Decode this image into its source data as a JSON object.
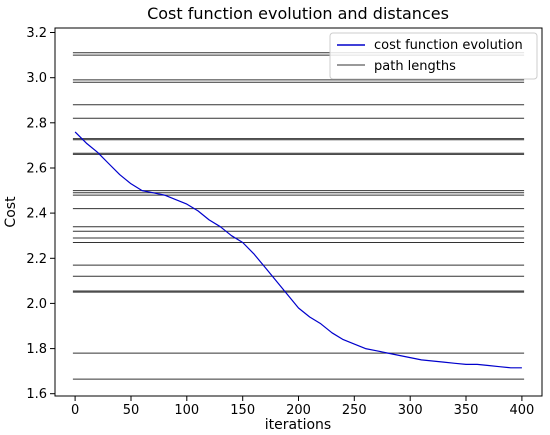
{
  "chart_data": {
    "type": "line",
    "title": "Cost function evolution and distances",
    "xlabel": "iterations",
    "ylabel": "Cost",
    "xlim": [
      -18,
      418
    ],
    "ylim": [
      1.59,
      3.22
    ],
    "xticks": [
      0,
      50,
      100,
      150,
      200,
      250,
      300,
      350,
      400
    ],
    "yticks": [
      1.6,
      1.8,
      2.0,
      2.2,
      2.4,
      2.6,
      2.8,
      3.0,
      3.2
    ],
    "grid": false,
    "legend_position": "top-right",
    "series": [
      {
        "name": "cost function evolution",
        "color": "#0000cc",
        "x": [
          0,
          10,
          20,
          30,
          40,
          50,
          60,
          70,
          80,
          90,
          100,
          110,
          120,
          130,
          140,
          150,
          160,
          170,
          180,
          190,
          200,
          210,
          220,
          230,
          240,
          250,
          260,
          270,
          280,
          290,
          300,
          310,
          320,
          330,
          340,
          350,
          360,
          370,
          380,
          390,
          400
        ],
        "y": [
          2.76,
          2.71,
          2.67,
          2.62,
          2.57,
          2.53,
          2.5,
          2.49,
          2.48,
          2.46,
          2.44,
          2.41,
          2.37,
          2.34,
          2.3,
          2.27,
          2.22,
          2.16,
          2.1,
          2.04,
          1.98,
          1.94,
          1.91,
          1.87,
          1.84,
          1.82,
          1.8,
          1.79,
          1.78,
          1.77,
          1.76,
          1.75,
          1.745,
          1.74,
          1.735,
          1.73,
          1.73,
          1.725,
          1.72,
          1.715,
          1.715
        ]
      },
      {
        "name": "path lengths",
        "color": "#333333",
        "hlines": [
          1.665,
          1.78,
          2.05,
          2.055,
          2.12,
          2.17,
          2.27,
          2.29,
          2.32,
          2.34,
          2.42,
          2.48,
          2.49,
          2.5,
          2.66,
          2.665,
          2.725,
          2.73,
          2.82,
          2.88,
          2.98,
          2.99,
          3.1,
          3.11
        ],
        "x_range": [
          -2,
          402
        ]
      }
    ]
  }
}
